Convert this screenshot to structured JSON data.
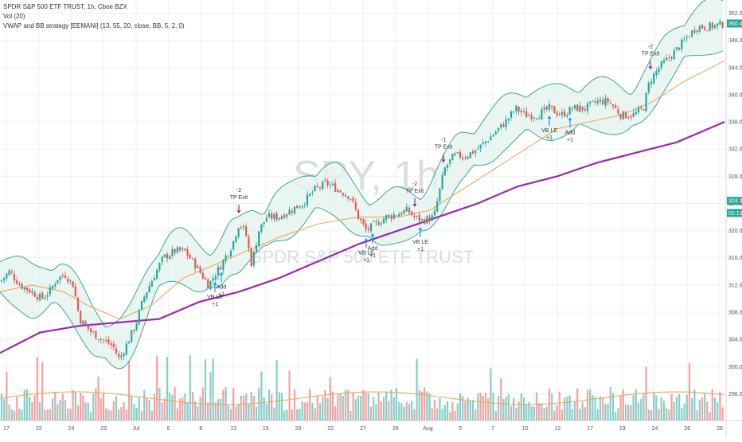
{
  "legend": {
    "title": "SPDR S&P 500 ETF TRUST, 1h, Cboe BZX",
    "vol": "Vol (20)",
    "strategy": "VWAP and BB strategy [EEMANI] (13, 55, 20, close, BB, 5, 2, 0)"
  },
  "watermark": {
    "symbol": "SPY, 1h",
    "name": "SPDR S&P 500 ETF TRUST"
  },
  "colors": {
    "up": "#26a69a",
    "down": "#ef5350",
    "bb": "#2a9d8f",
    "bb_fill": "#e3f2ee",
    "orange": "#f0a050",
    "vwap": "#9c27b0",
    "grid": "#eef0f3",
    "signal_long": "#2196f3",
    "signal_exit": "#9c27b0"
  },
  "chart_data": {
    "type": "candlestick",
    "x_tick_labels": [
      "17",
      "22",
      "24",
      "29",
      "Jul",
      "6",
      "8",
      "13",
      "15",
      "20",
      "22",
      "27",
      "29",
      "Aug",
      "5",
      "7",
      "10",
      "12",
      "17",
      "19",
      "24",
      "26",
      "28"
    ],
    "y_tick_labels": [
      296,
      300,
      304,
      308,
      312,
      316,
      320,
      324,
      328,
      332,
      336,
      340,
      344,
      348,
      352
    ],
    "ylim": [
      293,
      353
    ],
    "price_tags": [
      {
        "label": "350.48",
        "value": 350.48,
        "color": "#26a69a"
      },
      {
        "label": "324.39",
        "value": 324.39,
        "color": "#26a69a"
      },
      {
        "label": "02:13",
        "value": 322.6,
        "color": "#26a69a"
      }
    ],
    "price_path": [
      [
        0,
        312.5
      ],
      [
        12,
        314
      ],
      [
        25,
        312
      ],
      [
        40,
        311
      ],
      [
        52,
        310
      ],
      [
        62,
        311
      ],
      [
        72,
        313
      ],
      [
        82,
        313.5
      ],
      [
        92,
        312
      ],
      [
        100,
        307
      ],
      [
        115,
        305
      ],
      [
        128,
        304
      ],
      [
        142,
        303
      ],
      [
        150,
        301
      ],
      [
        158,
        303
      ],
      [
        170,
        306
      ],
      [
        180,
        310
      ],
      [
        192,
        313
      ],
      [
        205,
        316
      ],
      [
        220,
        317
      ],
      [
        232,
        317
      ],
      [
        245,
        315
      ],
      [
        262,
        312
      ],
      [
        278,
        315
      ],
      [
        292,
        318
      ],
      [
        300,
        321
      ],
      [
        308,
        320
      ],
      [
        316,
        315
      ],
      [
        325,
        320
      ],
      [
        335,
        322
      ],
      [
        350,
        322
      ],
      [
        365,
        323
      ],
      [
        380,
        324
      ],
      [
        395,
        326
      ],
      [
        410,
        327
      ],
      [
        425,
        326
      ],
      [
        440,
        325
      ],
      [
        450,
        322
      ],
      [
        460,
        320
      ],
      [
        472,
        321
      ],
      [
        485,
        322
      ],
      [
        500,
        322.5
      ],
      [
        512,
        323
      ],
      [
        520,
        322
      ],
      [
        530,
        321.5
      ],
      [
        545,
        322
      ],
      [
        558,
        329
      ],
      [
        570,
        331
      ],
      [
        585,
        331
      ],
      [
        600,
        332
      ],
      [
        618,
        334
      ],
      [
        635,
        336
      ],
      [
        648,
        338
      ],
      [
        660,
        337
      ],
      [
        675,
        337
      ],
      [
        690,
        338
      ],
      [
        705,
        337
      ],
      [
        720,
        338
      ],
      [
        735,
        338
      ],
      [
        750,
        339
      ],
      [
        765,
        339
      ],
      [
        780,
        337
      ],
      [
        795,
        337
      ],
      [
        808,
        338
      ],
      [
        816,
        342
      ],
      [
        828,
        344
      ],
      [
        845,
        346
      ],
      [
        860,
        348
      ],
      [
        875,
        350
      ],
      [
        890,
        350
      ],
      [
        910,
        350.4
      ]
    ],
    "vwap_long": [
      [
        0,
        302
      ],
      [
        50,
        305
      ],
      [
        100,
        306
      ],
      [
        150,
        306.5
      ],
      [
        200,
        307
      ],
      [
        250,
        309.5
      ],
      [
        300,
        311
      ],
      [
        350,
        313
      ],
      [
        400,
        315.5
      ],
      [
        450,
        318
      ],
      [
        500,
        320
      ],
      [
        550,
        322
      ],
      [
        600,
        324
      ],
      [
        650,
        326.5
      ],
      [
        700,
        328
      ],
      [
        750,
        330
      ],
      [
        800,
        331.5
      ],
      [
        850,
        333
      ],
      [
        910,
        336
      ]
    ],
    "orange_ma": [
      [
        0,
        311
      ],
      [
        40,
        312
      ],
      [
        80,
        311
      ],
      [
        110,
        309
      ],
      [
        150,
        307
      ],
      [
        190,
        309
      ],
      [
        230,
        313
      ],
      [
        270,
        315
      ],
      [
        310,
        317
      ],
      [
        350,
        319
      ],
      [
        400,
        321
      ],
      [
        450,
        322
      ],
      [
        500,
        322
      ],
      [
        540,
        323
      ],
      [
        580,
        326
      ],
      [
        620,
        329
      ],
      [
        660,
        332
      ],
      [
        700,
        335
      ],
      [
        740,
        336
      ],
      [
        780,
        337
      ],
      [
        820,
        339
      ],
      [
        860,
        342
      ],
      [
        910,
        345
      ]
    ],
    "bb_width": 3.2,
    "annotations": [
      {
        "x": 270,
        "lines": [
          "VB LE",
          "+1"
        ],
        "type": "entry"
      },
      {
        "x": 278,
        "lines": [
          "Add",
          "+1"
        ],
        "type": "entry"
      },
      {
        "x": 300,
        "lines": [
          "-2",
          "TP Exit"
        ],
        "type": "exit"
      },
      {
        "x": 460,
        "lines": [
          "VB LE",
          "+1"
        ],
        "type": "entry"
      },
      {
        "x": 468,
        "lines": [
          "Add",
          "+1"
        ],
        "type": "entry"
      },
      {
        "x": 521,
        "lines": [
          "-2",
          "TP Exit"
        ],
        "type": "exit"
      },
      {
        "x": 528,
        "lines": [
          "VB LE",
          "+1"
        ],
        "type": "entry"
      },
      {
        "x": 557,
        "lines": [
          "-1",
          "TP Exit"
        ],
        "type": "exit"
      },
      {
        "x": 690,
        "lines": [
          "VB LE",
          "+1"
        ],
        "type": "entry"
      },
      {
        "x": 716,
        "lines": [
          "Add",
          "+1"
        ],
        "type": "entry"
      },
      {
        "x": 817,
        "lines": [
          "-2",
          "TP Exit"
        ],
        "type": "exit"
      }
    ]
  }
}
